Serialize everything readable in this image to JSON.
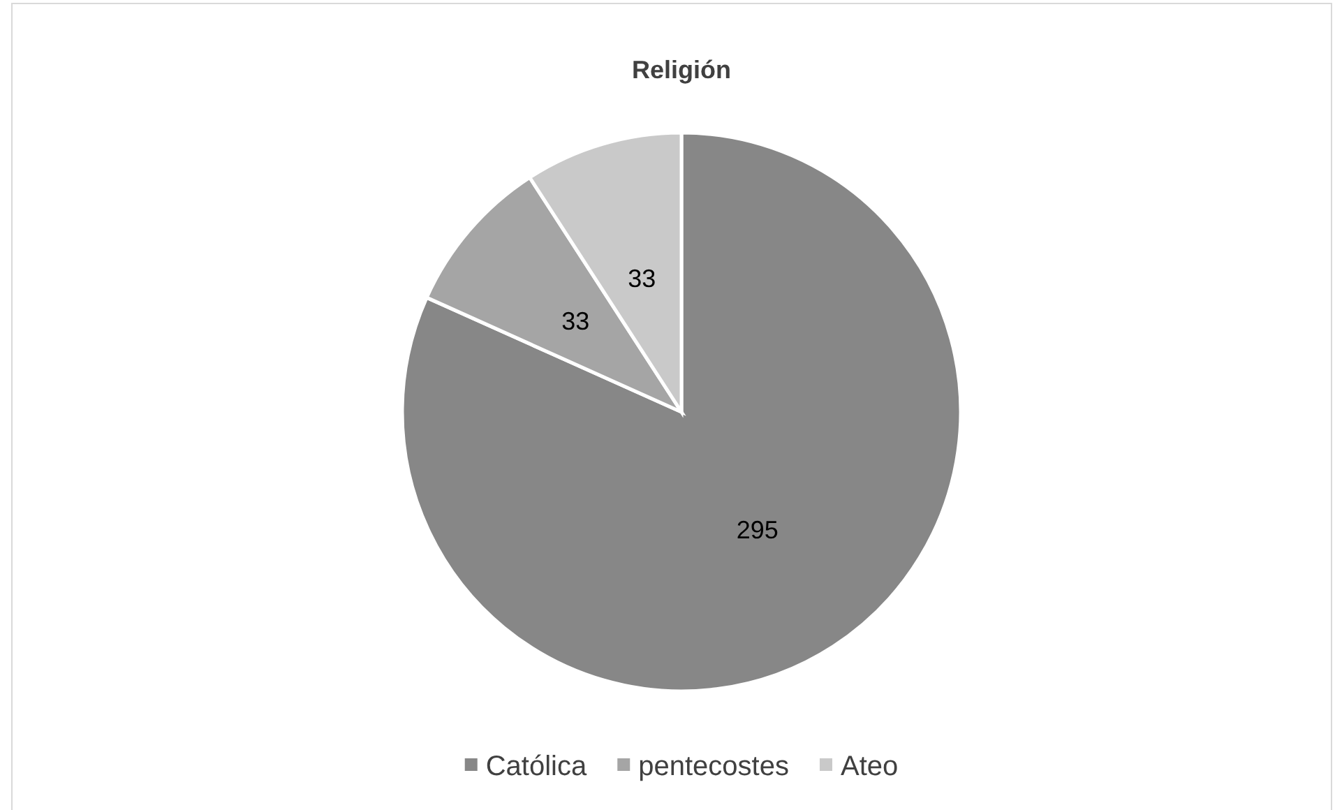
{
  "chart_data": {
    "type": "pie",
    "title": "Religión",
    "categories": [
      "Católica",
      "pentecostes",
      "Ateo"
    ],
    "values": [
      295,
      33,
      33
    ],
    "colors": [
      "#878787",
      "#a5a5a5",
      "#c9c9c9"
    ],
    "data_labels": true,
    "legend": "bottom"
  }
}
